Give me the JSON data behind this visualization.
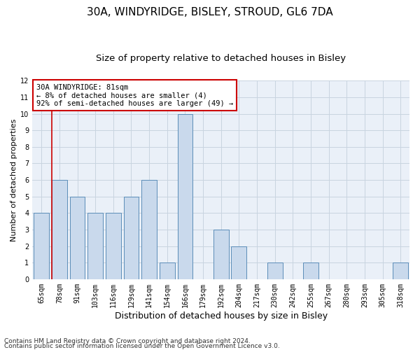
{
  "title1": "30A, WINDYRIDGE, BISLEY, STROUD, GL6 7DA",
  "title2": "Size of property relative to detached houses in Bisley",
  "xlabel": "Distribution of detached houses by size in Bisley",
  "ylabel": "Number of detached properties",
  "categories": [
    "65sqm",
    "78sqm",
    "91sqm",
    "103sqm",
    "116sqm",
    "129sqm",
    "141sqm",
    "154sqm",
    "166sqm",
    "179sqm",
    "192sqm",
    "204sqm",
    "217sqm",
    "230sqm",
    "242sqm",
    "255sqm",
    "267sqm",
    "280sqm",
    "293sqm",
    "305sqm",
    "318sqm"
  ],
  "values": [
    4,
    6,
    5,
    4,
    4,
    5,
    6,
    1,
    10,
    0,
    3,
    2,
    0,
    1,
    0,
    1,
    0,
    0,
    0,
    0,
    1
  ],
  "bar_color": "#c9d9ec",
  "bar_edge_color": "#5b8db8",
  "highlight_index": 1,
  "highlight_line_color": "#cc0000",
  "annotation_text": "30A WINDYRIDGE: 81sqm\n← 8% of detached houses are smaller (4)\n92% of semi-detached houses are larger (49) →",
  "annotation_box_color": "#ffffff",
  "annotation_box_edge_color": "#cc0000",
  "ylim": [
    0,
    12
  ],
  "yticks": [
    0,
    1,
    2,
    3,
    4,
    5,
    6,
    7,
    8,
    9,
    10,
    11,
    12
  ],
  "footnote1": "Contains HM Land Registry data © Crown copyright and database right 2024.",
  "footnote2": "Contains public sector information licensed under the Open Government Licence v3.0.",
  "bg_color": "#ffffff",
  "plot_bg_color": "#eaf0f8",
  "grid_color": "#c8d4e0",
  "title1_fontsize": 11,
  "title2_fontsize": 9.5,
  "xlabel_fontsize": 9,
  "ylabel_fontsize": 8,
  "tick_fontsize": 7,
  "annotation_fontsize": 7.5,
  "footnote_fontsize": 6.5
}
